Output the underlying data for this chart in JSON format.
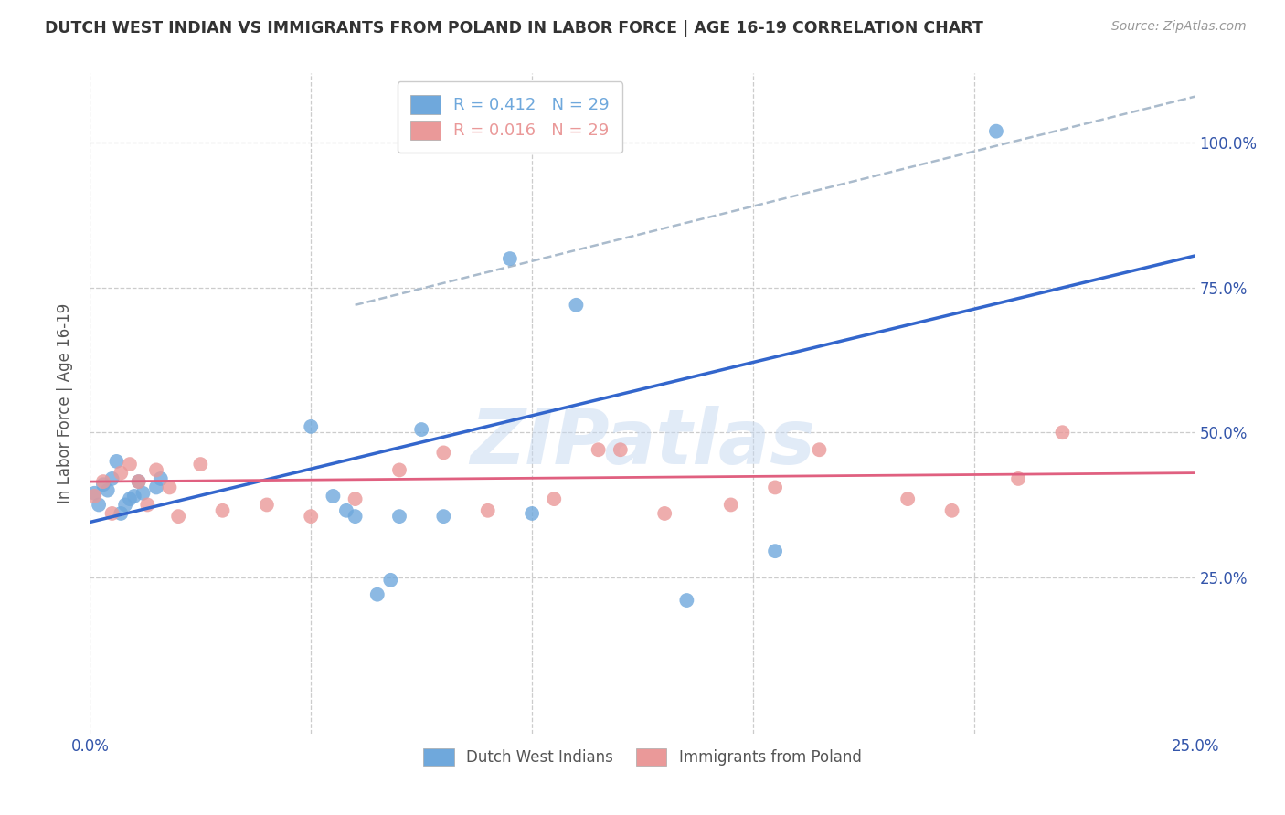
{
  "title": "DUTCH WEST INDIAN VS IMMIGRANTS FROM POLAND IN LABOR FORCE | AGE 16-19 CORRELATION CHART",
  "source": "Source: ZipAtlas.com",
  "ylabel": "In Labor Force | Age 16-19",
  "xlim": [
    0.0,
    0.25
  ],
  "ylim": [
    -0.02,
    1.12
  ],
  "yticks": [
    0.25,
    0.5,
    0.75,
    1.0
  ],
  "ytick_labels": [
    "25.0%",
    "50.0%",
    "75.0%",
    "100.0%"
  ],
  "xticks": [
    0.0,
    0.05,
    0.1,
    0.15,
    0.2,
    0.25
  ],
  "xtick_labels": [
    "0.0%",
    "",
    "",
    "",
    "",
    "25.0%"
  ],
  "legend_entries": [
    {
      "label": "R = 0.412   N = 29",
      "color": "#6fa8dc"
    },
    {
      "label": "R = 0.016   N = 29",
      "color": "#ea9999"
    }
  ],
  "series1_label": "Dutch West Indians",
  "series2_label": "Immigrants from Poland",
  "series1_color": "#6fa8dc",
  "series2_color": "#ea9999",
  "blue_line_color": "#3366cc",
  "pink_line_color": "#e06080",
  "diag_line_color": "#aabbcc",
  "watermark": "ZIPatlas",
  "dutch_x": [
    0.001,
    0.002,
    0.003,
    0.004,
    0.005,
    0.006,
    0.007,
    0.008,
    0.009,
    0.01,
    0.011,
    0.012,
    0.015,
    0.016,
    0.05,
    0.055,
    0.058,
    0.06,
    0.065,
    0.068,
    0.07,
    0.075,
    0.08,
    0.095,
    0.1,
    0.11,
    0.135,
    0.155,
    0.205
  ],
  "dutch_y": [
    0.395,
    0.375,
    0.41,
    0.4,
    0.42,
    0.45,
    0.36,
    0.375,
    0.385,
    0.39,
    0.415,
    0.395,
    0.405,
    0.42,
    0.51,
    0.39,
    0.365,
    0.355,
    0.22,
    0.245,
    0.355,
    0.505,
    0.355,
    0.8,
    0.36,
    0.72,
    0.21,
    0.295,
    1.02
  ],
  "poland_x": [
    0.001,
    0.003,
    0.005,
    0.007,
    0.009,
    0.011,
    0.013,
    0.015,
    0.018,
    0.02,
    0.025,
    0.03,
    0.04,
    0.05,
    0.06,
    0.07,
    0.08,
    0.09,
    0.105,
    0.115,
    0.12,
    0.13,
    0.145,
    0.155,
    0.165,
    0.185,
    0.195,
    0.21,
    0.22
  ],
  "poland_y": [
    0.39,
    0.415,
    0.36,
    0.43,
    0.445,
    0.415,
    0.375,
    0.435,
    0.405,
    0.355,
    0.445,
    0.365,
    0.375,
    0.355,
    0.385,
    0.435,
    0.465,
    0.365,
    0.385,
    0.47,
    0.47,
    0.36,
    0.375,
    0.405,
    0.47,
    0.385,
    0.365,
    0.42,
    0.5
  ],
  "blue_line_x": [
    0.0,
    0.25
  ],
  "blue_line_y": [
    0.345,
    0.805
  ],
  "pink_line_x": [
    0.0,
    0.25
  ],
  "pink_line_y": [
    0.415,
    0.43
  ],
  "diag_line_x": [
    0.06,
    0.25
  ],
  "diag_line_y": [
    0.72,
    1.08
  ]
}
